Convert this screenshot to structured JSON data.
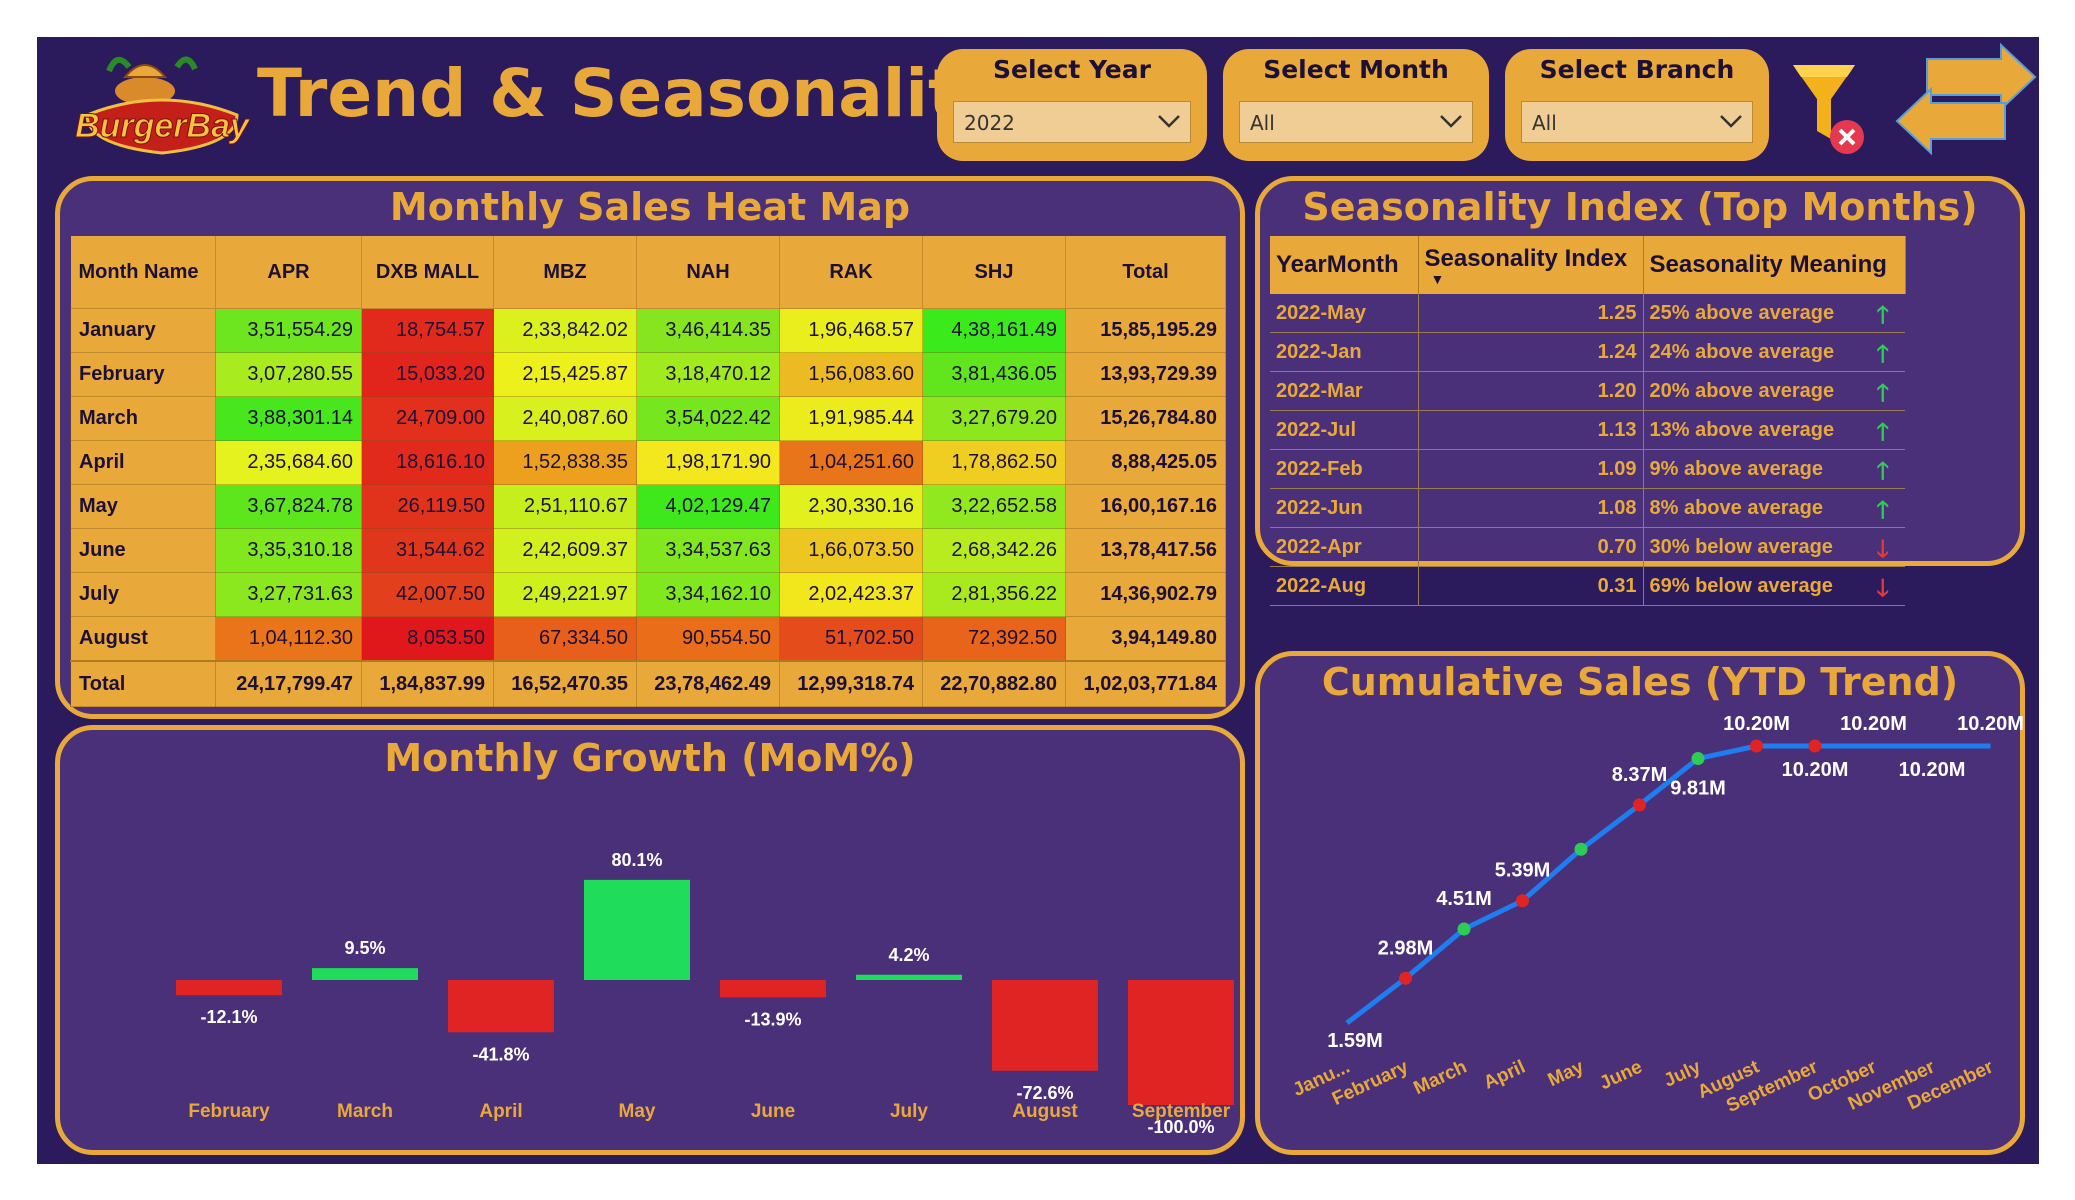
{
  "header": {
    "logo_text": "BurgerBay",
    "title": "Trend & Seasonality",
    "slicers": [
      {
        "label": "Select Year",
        "value": "2022"
      },
      {
        "label": "Select Month",
        "value": "All"
      },
      {
        "label": "Select Branch",
        "value": "All"
      }
    ],
    "icons": [
      "clear-filter-icon",
      "navigate-arrows-icon"
    ]
  },
  "heatmap": {
    "title": "Monthly Sales Heat Map",
    "columns": [
      "Month Name",
      "APR",
      "DXB MALL",
      "MBZ",
      "NAH",
      "RAK",
      "SHJ",
      "Total"
    ],
    "rows": [
      {
        "month": "January",
        "cells": [
          "3,51,554.29",
          "18,754.57",
          "2,33,842.02",
          "3,46,414.35",
          "1,96,468.57",
          "4,38,161.49"
        ],
        "total": "15,85,195.29",
        "colors": [
          "#6ee61f",
          "#e12a1c",
          "#dcf01d",
          "#86e51e",
          "#eaee1d",
          "#3bea1a"
        ]
      },
      {
        "month": "February",
        "cells": [
          "3,07,280.55",
          "15,033.20",
          "2,15,425.87",
          "3,18,470.12",
          "1,56,083.60",
          "3,81,436.05"
        ],
        "total": "13,93,729.39",
        "colors": [
          "#a8ec1f",
          "#e1241c",
          "#eef01c",
          "#a0ea1e",
          "#ecba22",
          "#61e61d"
        ]
      },
      {
        "month": "March",
        "cells": [
          "3,88,301.14",
          "24,709.00",
          "2,40,087.60",
          "3,54,022.42",
          "1,91,985.44",
          "3,27,679.20"
        ],
        "total": "15,26,784.80",
        "colors": [
          "#48e61c",
          "#e2301c",
          "#d8f01d",
          "#76e71e",
          "#ecec1d",
          "#8ce71e"
        ]
      },
      {
        "month": "April",
        "cells": [
          "2,35,684.60",
          "18,616.10",
          "1,52,838.35",
          "1,98,171.90",
          "1,04,251.60",
          "1,78,862.50"
        ],
        "total": "8,88,425.05",
        "colors": [
          "#e6f21d",
          "#e12a1c",
          "#eca01e",
          "#f2e81d",
          "#e8751a",
          "#efce21"
        ]
      },
      {
        "month": "May",
        "cells": [
          "3,67,824.78",
          "26,119.50",
          "2,51,110.67",
          "4,02,129.47",
          "2,30,330.16",
          "3,22,652.58"
        ],
        "total": "16,00,167.16",
        "colors": [
          "#5ee61d",
          "#e1331c",
          "#c6ee1d",
          "#3ee81b",
          "#e2f01d",
          "#92e81e"
        ]
      },
      {
        "month": "June",
        "cells": [
          "3,35,310.18",
          "31,544.62",
          "2,42,609.37",
          "3,34,537.63",
          "1,66,073.50",
          "2,68,342.26"
        ],
        "total": "13,78,417.56",
        "colors": [
          "#82e81e",
          "#e0361c",
          "#d2f01d",
          "#82e81e",
          "#edc622",
          "#b8ec1f"
        ]
      },
      {
        "month": "July",
        "cells": [
          "3,27,731.63",
          "42,007.50",
          "2,49,221.97",
          "3,34,162.10",
          "2,02,423.37",
          "2,81,356.22"
        ],
        "total": "14,36,902.79",
        "colors": [
          "#8ce81e",
          "#e2401c",
          "#cef01d",
          "#82e81e",
          "#f2e61d",
          "#a9ea1f"
        ]
      },
      {
        "month": "August",
        "cells": [
          "1,04,112.30",
          "8,053.50",
          "67,334.50",
          "90,554.50",
          "51,702.50",
          "72,392.50"
        ],
        "total": "3,94,149.80",
        "colors": [
          "#ea741a",
          "#e0181c",
          "#e85e1b",
          "#ea6d1a",
          "#e44c1b",
          "#e8641b"
        ]
      }
    ],
    "total_row": {
      "label": "Total",
      "cells": [
        "24,17,799.47",
        "1,84,837.99",
        "16,52,470.35",
        "23,78,462.49",
        "12,99,318.74",
        "22,70,882.80"
      ],
      "total": "1,02,03,771.84"
    }
  },
  "seasonality": {
    "title": "Seasonality Index (Top Months)",
    "columns": [
      "YearMonth",
      "Seasonality Index",
      "Seasonality Meaning"
    ],
    "sort_indicator": "▼",
    "rows": [
      {
        "ym": "2022-May",
        "index": "1.25",
        "meaning": "25% above average",
        "dir": "up"
      },
      {
        "ym": "2022-Jan",
        "index": "1.24",
        "meaning": "24% above average",
        "dir": "up"
      },
      {
        "ym": "2022-Mar",
        "index": "1.20",
        "meaning": "20% above average",
        "dir": "up"
      },
      {
        "ym": "2022-Jul",
        "index": "1.13",
        "meaning": "13% above average",
        "dir": "up"
      },
      {
        "ym": "2022-Feb",
        "index": "1.09",
        "meaning": "9% above average",
        "dir": "up"
      },
      {
        "ym": "2022-Jun",
        "index": "1.08",
        "meaning": "8% above average",
        "dir": "up"
      },
      {
        "ym": "2022-Apr",
        "index": "0.70",
        "meaning": "30% below average",
        "dir": "down"
      },
      {
        "ym": "2022-Aug",
        "index": "0.31",
        "meaning": "69% below average",
        "dir": "down"
      }
    ],
    "arrow_up": "🡑",
    "arrow_down": "🡓",
    "colors": {
      "up": "#2ecc55",
      "down": "#e53935"
    }
  },
  "chart_data": [
    {
      "type": "bar",
      "title": "Monthly Growth (MoM%)",
      "categories": [
        "February",
        "March",
        "April",
        "May",
        "June",
        "July",
        "August",
        "September"
      ],
      "values": [
        -12.1,
        9.5,
        -41.8,
        80.1,
        -13.9,
        4.2,
        -72.6,
        -100.0
      ],
      "labels": [
        "-12.1%",
        "9.5%",
        "-41.8%",
        "80.1%",
        "-13.9%",
        "4.2%",
        "-72.6%",
        "-100.0%"
      ],
      "colors": {
        "positive": "#1fdc5a",
        "negative": "#e02424"
      }
    },
    {
      "type": "line",
      "title": "Cumulative Sales (YTD Trend)",
      "categories": [
        "Janu...",
        "February",
        "March",
        "April",
        "May",
        "June",
        "July",
        "August",
        "September",
        "October",
        "November",
        "December"
      ],
      "values": [
        1.59,
        2.98,
        4.51,
        5.39,
        6.99,
        8.37,
        9.81,
        10.2,
        10.2,
        10.2,
        10.2,
        10.2
      ],
      "labels": [
        "1.59M",
        "2.98M",
        "4.51M",
        "5.39M",
        "",
        "8.37M",
        "9.81M",
        "10.20M",
        "10.20M",
        "10.20M",
        "10.20M",
        "10.20M"
      ],
      "marker_colors": [
        "",
        "#e02424",
        "#2ecc55",
        "#e02424",
        "#2ecc55",
        "#e02424",
        "#2ecc55",
        "#e02424",
        "#e02424",
        "",
        "",
        ""
      ],
      "line_color": "#1e7ef0"
    }
  ]
}
